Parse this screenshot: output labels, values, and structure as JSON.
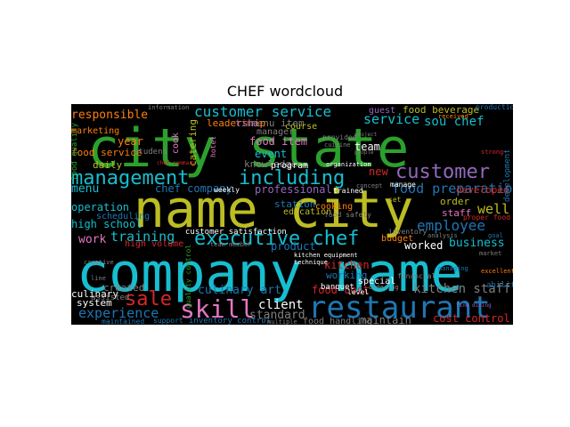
{
  "chart_data": {
    "type": "wordcloud",
    "title": "CHEF wordcloud",
    "background": "#000000",
    "words": [
      {
        "text": "city state",
        "color": "#2ca02c"
      },
      {
        "text": "name city",
        "color": "#bcbd22"
      },
      {
        "text": "company name",
        "color": "#17becf"
      },
      {
        "text": "restaurant",
        "color": "#1f77b4"
      },
      {
        "text": "management",
        "color": "#17becf"
      },
      {
        "text": "including",
        "color": "#17becf"
      },
      {
        "text": "customer",
        "color": "#9467bd"
      },
      {
        "text": "executive chef",
        "color": "#17becf"
      },
      {
        "text": "skill",
        "color": "#e377c2"
      },
      {
        "text": "sale",
        "color": "#d62728"
      },
      {
        "text": "customer service",
        "color": "#17becf"
      },
      {
        "text": "sou chef",
        "color": "#17becf"
      },
      {
        "text": "food preparation",
        "color": "#1f77b4"
      },
      {
        "text": "employee",
        "color": "#1f77b4"
      },
      {
        "text": "experience",
        "color": "#1f77b4"
      },
      {
        "text": "training",
        "color": "#17becf"
      },
      {
        "text": "service",
        "color": "#17becf"
      },
      {
        "text": "kitchen staff",
        "color": "#7f7f7f"
      },
      {
        "text": "responsible",
        "color": "#ff7f0e"
      },
      {
        "text": "culinary art",
        "color": "#1f77b4"
      },
      {
        "text": "business",
        "color": "#17becf"
      },
      {
        "text": "chef company",
        "color": "#1f77b4"
      },
      {
        "text": "professional",
        "color": "#9467bd"
      },
      {
        "text": "menu item",
        "color": "#7f7f7f"
      },
      {
        "text": "operation",
        "color": "#17becf"
      },
      {
        "text": "work",
        "color": "#e377c2"
      },
      {
        "text": "well",
        "color": "#bcbd22"
      },
      {
        "text": "menu",
        "color": "#17becf"
      },
      {
        "text": "year",
        "color": "#ff7f0e"
      },
      {
        "text": "client",
        "color": "#ffffff"
      },
      {
        "text": "cost control",
        "color": "#d62728"
      },
      {
        "text": "food cost",
        "color": "#d62728"
      },
      {
        "text": "high school",
        "color": "#17becf"
      },
      {
        "text": "food item",
        "color": "#e377c2"
      },
      {
        "text": "new",
        "color": "#d62728"
      },
      {
        "text": "developed",
        "color": "#d62728"
      },
      {
        "text": "standard",
        "color": "#7f7f7f"
      },
      {
        "text": "food beverage",
        "color": "#bcbd22"
      },
      {
        "text": "guest",
        "color": "#9467bd"
      },
      {
        "text": "leadership",
        "color": "#ff7f0e"
      },
      {
        "text": "time",
        "color": "#9467bd"
      },
      {
        "text": "event",
        "color": "#17becf"
      },
      {
        "text": "knowledge",
        "color": "#7f7f7f"
      },
      {
        "text": "team",
        "color": "#ffffff"
      },
      {
        "text": "order",
        "color": "#bcbd22"
      },
      {
        "text": "staff",
        "color": "#e377c2"
      },
      {
        "text": "worked",
        "color": "#ffffff"
      },
      {
        "text": "maintain",
        "color": "#7f7f7f"
      },
      {
        "text": "food handling",
        "color": "#7f7f7f"
      },
      {
        "text": "system",
        "color": "#ffffff"
      },
      {
        "text": "culinary",
        "color": "#ffffff"
      },
      {
        "text": "created",
        "color": "#7f7f7f"
      },
      {
        "text": "food service",
        "color": "#ff7f0e"
      },
      {
        "text": "daily",
        "color": "#bcbd22"
      },
      {
        "text": "scheduling",
        "color": "#1f77b4"
      },
      {
        "text": "working",
        "color": "#1f77b4"
      },
      {
        "text": "kitchen",
        "color": "#d62728"
      },
      {
        "text": "program",
        "color": "#ffffff"
      },
      {
        "text": "product",
        "color": "#1f77b4"
      },
      {
        "text": "station",
        "color": "#1f77b4"
      },
      {
        "text": "education",
        "color": "#bcbd22"
      },
      {
        "text": "cooking",
        "color": "#ff7f0e"
      },
      {
        "text": "manager",
        "color": "#7f7f7f"
      },
      {
        "text": "course",
        "color": "#bcbd22"
      },
      {
        "text": "catering",
        "color": "#bcbd22"
      },
      {
        "text": "food quality",
        "color": "#2ca02c"
      },
      {
        "text": "development",
        "color": "#1f77b4"
      },
      {
        "text": "marketing",
        "color": "#ff7f0e"
      },
      {
        "text": "student",
        "color": "#7f7f7f"
      },
      {
        "text": "cook",
        "color": "#e377c2"
      },
      {
        "text": "budget",
        "color": "#ff7f0e"
      },
      {
        "text": "assisted",
        "color": "#7f7f7f"
      },
      {
        "text": "high volume",
        "color": "#d62728"
      },
      {
        "text": "customer satisfaction",
        "color": "#ffffff"
      },
      {
        "text": "banquet",
        "color": "#ffffff"
      },
      {
        "text": "special",
        "color": "#ffffff"
      },
      {
        "text": "food safety",
        "color": "#7f7f7f"
      },
      {
        "text": "inventory",
        "color": "#7f7f7f"
      },
      {
        "text": "inventory control",
        "color": "#1f77b4"
      },
      {
        "text": "support",
        "color": "#1f77b4"
      },
      {
        "text": "maintained",
        "color": "#1f77b4"
      },
      {
        "text": "trained",
        "color": "#ffffff"
      },
      {
        "text": "hotel",
        "color": "#e377c2"
      },
      {
        "text": "weekly",
        "color": "#ffffff"
      },
      {
        "text": "kitchen equipment",
        "color": "#ffffff"
      },
      {
        "text": "technique",
        "color": "#ffffff"
      },
      {
        "text": "quality control",
        "color": "#2ca02c"
      },
      {
        "text": "concept",
        "color": "#7f7f7f"
      },
      {
        "text": "organization",
        "color": "#ffffff"
      },
      {
        "text": "provided",
        "color": "#7f7f7f"
      },
      {
        "text": "manage",
        "color": "#ffffff"
      },
      {
        "text": "set",
        "color": "#bcbd22"
      },
      {
        "text": "proper food",
        "color": "#d62728"
      },
      {
        "text": "ability",
        "color": "#1f77b4"
      },
      {
        "text": "excellent",
        "color": "#ff7f0e"
      },
      {
        "text": "multiple",
        "color": "#7f7f7f"
      },
      {
        "text": "level",
        "color": "#ffffff"
      },
      {
        "text": "financial",
        "color": "#7f7f7f"
      },
      {
        "text": "analysis",
        "color": "#7f7f7f"
      },
      {
        "text": "production",
        "color": "#1f77b4"
      },
      {
        "text": "received",
        "color": "#ff7f0e"
      },
      {
        "text": "strong",
        "color": "#d62728"
      },
      {
        "text": "managing",
        "color": "#1f77b4"
      },
      {
        "text": "goal",
        "color": "#1f77b4"
      },
      {
        "text": "ordering",
        "color": "#7f7f7f"
      },
      {
        "text": "people",
        "color": "#7f7f7f"
      },
      {
        "text": "fine dining",
        "color": "#9467bd"
      },
      {
        "text": "line",
        "color": "#7f7f7f"
      },
      {
        "text": "creative",
        "color": "#7f7f7f"
      },
      {
        "text": "team member",
        "color": "#7f7f7f"
      },
      {
        "text": "chef summary",
        "color": "#d62728"
      },
      {
        "text": "information",
        "color": "#7f7f7f"
      },
      {
        "text": "project",
        "color": "#7f7f7f"
      },
      {
        "text": "cuisine",
        "color": "#7f7f7f"
      },
      {
        "text": "market",
        "color": "#7f7f7f"
      }
    ]
  }
}
